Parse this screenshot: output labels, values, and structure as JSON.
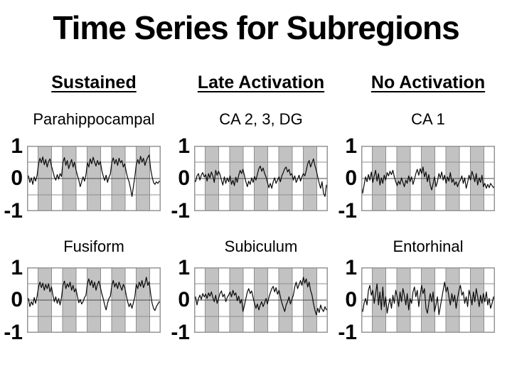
{
  "title": "Time Series for Subregions",
  "columns": [
    {
      "header": "Sustained",
      "cells": [
        {
          "label": "Parahippocampal"
        },
        {
          "label": "Fusiform"
        }
      ]
    },
    {
      "header": "Late Activation",
      "cells": [
        {
          "label": "CA 2, 3, DG"
        },
        {
          "label": "Subiculum"
        }
      ]
    },
    {
      "header": "No Activation",
      "cells": [
        {
          "label": "CA 1"
        },
        {
          "label": "Entorhinal"
        }
      ]
    }
  ],
  "axis": {
    "yticks": [
      "1",
      "0",
      "-1"
    ]
  },
  "colors": {
    "background": "#ffffff",
    "text": "#000000",
    "task_band": "#c2c2c2",
    "grid_minor": "#8f8f8f",
    "grid_zero": "#4a4a4a",
    "frame": "#969696",
    "line": "#0a0a0a"
  },
  "chart_data": {
    "type": "line",
    "ylim": [
      -1,
      1
    ],
    "yticks": [
      1,
      0,
      -1
    ],
    "grid_y": [
      0.5,
      0,
      -0.5
    ],
    "task_intervals_frac": [
      [
        0.0824,
        0.1835
      ],
      [
        0.266,
        0.367
      ],
      [
        0.4495,
        0.5505
      ],
      [
        0.633,
        0.734
      ],
      [
        0.8165,
        0.9176
      ]
    ],
    "series": [
      {
        "name": "Parahippocampal",
        "condition": "Sustained",
        "values": [
          -0.05,
          0.08,
          -0.12,
          0.02,
          -0.18,
          0.05,
          -0.08,
          0.1,
          0.45,
          0.62,
          0.48,
          0.66,
          0.42,
          0.58,
          0.35,
          0.52,
          0.6,
          0.38,
          0.22,
          0.05,
          -0.05,
          0.12,
          -0.02,
          0.15,
          0.06,
          0.5,
          0.64,
          0.4,
          0.55,
          0.3,
          0.45,
          0.58,
          0.35,
          0.5,
          0.28,
          0.1,
          -0.05,
          -0.25,
          -0.1,
          0.05,
          -0.08,
          0.12,
          0.48,
          0.35,
          0.6,
          0.45,
          0.65,
          0.5,
          0.38,
          0.55,
          0.42,
          0.52,
          0.25,
          0.08,
          -0.06,
          0.1,
          -0.12,
          0.04,
          0.14,
          0.5,
          0.63,
          0.45,
          0.58,
          0.4,
          0.62,
          0.48,
          0.55,
          0.35,
          0.45,
          0.2,
          0.02,
          -0.1,
          -0.3,
          -0.55,
          -0.25,
          0.05,
          0.42,
          0.58,
          0.45,
          0.68,
          0.5,
          0.62,
          0.4,
          0.55,
          0.65,
          0.72,
          0.3,
          0.05,
          -0.12,
          -0.18,
          -0.1,
          -0.15,
          -0.08,
          -0.12
        ]
      },
      {
        "name": "CA 2, 3, DG",
        "condition": "Late Activation",
        "values": [
          0.02,
          -0.1,
          0.08,
          0.15,
          -0.05,
          0.1,
          0.18,
          0.05,
          0.12,
          -0.08,
          0.15,
          0.02,
          0.2,
          0.08,
          -0.12,
          0.25,
          0.1,
          0.22,
          0.12,
          -0.05,
          -0.2,
          0.05,
          -0.15,
          0.02,
          -0.1,
          0.08,
          -0.18,
          -0.05,
          -0.22,
          0.04,
          -0.12,
          0.1,
          0.25,
          0.15,
          0.28,
          0.08,
          -0.1,
          -0.25,
          -0.08,
          -0.18,
          0.02,
          -0.12,
          0.06,
          -0.05,
          0.12,
          0.3,
          0.38,
          0.22,
          0.32,
          0.15,
          0.05,
          -0.12,
          -0.28,
          -0.15,
          -0.3,
          -0.1,
          0.02,
          -0.15,
          -0.05,
          0.05,
          -0.1,
          0.08,
          0.18,
          0.3,
          0.35,
          0.2,
          0.28,
          0.1,
          0.15,
          -0.05,
          0.08,
          -0.12,
          -0.02,
          0.1,
          -0.08,
          0.05,
          0.15,
          0.08,
          0.25,
          0.45,
          0.55,
          0.35,
          0.48,
          0.6,
          0.4,
          0.25,
          0.05,
          -0.15,
          -0.3,
          -0.1,
          -0.45,
          -0.55,
          -0.2,
          -0.35
        ]
      },
      {
        "name": "CA 1",
        "condition": "No Activation",
        "values": [
          -0.15,
          -0.45,
          -0.2,
          0.05,
          -0.1,
          0.12,
          -0.05,
          0.2,
          -0.12,
          0.08,
          0.25,
          -0.08,
          0.15,
          -0.2,
          0.02,
          -0.15,
          0.1,
          -0.05,
          0.18,
          0.08,
          0.22,
          0.12,
          0.25,
          0.05,
          -0.1,
          -0.22,
          -0.08,
          -0.18,
          0.02,
          -0.12,
          -0.25,
          -0.05,
          -0.15,
          0.08,
          -0.1,
          0.05,
          -0.18,
          -0.02,
          0.15,
          0.28,
          0.1,
          0.3,
          0.15,
          0.35,
          0.05,
          0.2,
          -0.1,
          0.12,
          -0.2,
          -0.35,
          -0.15,
          0.05,
          -0.25,
          -0.1,
          0.15,
          0.02,
          0.2,
          -0.05,
          0.1,
          -0.15,
          0.05,
          -0.08,
          0.18,
          -0.12,
          -0.02,
          -0.2,
          -0.1,
          -0.25,
          -0.12,
          -0.05,
          0.08,
          -0.15,
          0.02,
          -0.3,
          -0.12,
          0.1,
          -0.05,
          0.22,
          0.08,
          -0.1,
          0.15,
          -0.2,
          0.02,
          -0.12,
          0.1,
          -0.25,
          -0.15,
          -0.3,
          -0.18,
          -0.28,
          -0.15,
          -0.22,
          -0.28,
          -0.2
        ]
      },
      {
        "name": "Fusiform",
        "condition": "Sustained",
        "values": [
          -0.1,
          0.05,
          -0.2,
          -0.05,
          -0.15,
          0.08,
          -0.1,
          0.12,
          0.4,
          0.55,
          0.38,
          0.52,
          0.3,
          0.48,
          0.35,
          0.5,
          0.25,
          0.4,
          0.15,
          -0.05,
          0.1,
          -0.1,
          0.05,
          -0.15,
          0.08,
          0.45,
          0.58,
          0.35,
          0.5,
          0.4,
          0.55,
          0.3,
          0.45,
          0.25,
          0.35,
          0.12,
          -0.08,
          0.02,
          -0.12,
          -0.05,
          0.08,
          0.15,
          0.5,
          0.65,
          0.45,
          0.6,
          0.38,
          0.55,
          0.3,
          0.48,
          0.58,
          0.4,
          0.2,
          0.05,
          -0.15,
          -0.3,
          -0.1,
          0.05,
          0.12,
          0.45,
          0.6,
          0.4,
          0.52,
          0.35,
          0.55,
          0.42,
          0.3,
          0.48,
          0.38,
          0.15,
          -0.05,
          -0.2,
          -0.1,
          -0.25,
          -0.08,
          0.1,
          0.48,
          0.35,
          0.55,
          0.42,
          0.6,
          0.38,
          0.5,
          0.7,
          0.45,
          0.55,
          0.2,
          -0.1,
          -0.25,
          -0.32,
          -0.2,
          -0.12,
          -0.05,
          -0.1
        ]
      },
      {
        "name": "Subiculum",
        "condition": "Late Activation",
        "values": [
          -0.05,
          0.1,
          -0.15,
          0.05,
          0.15,
          0.02,
          0.2,
          0.1,
          0.18,
          0.05,
          0.22,
          0.12,
          0.25,
          0.08,
          -0.05,
          0.15,
          -0.1,
          0.05,
          0.2,
          0.28,
          0.1,
          0.18,
          -0.05,
          0.08,
          0.15,
          0.25,
          0.1,
          0.3,
          0.15,
          0.22,
          -0.02,
          0.12,
          -0.1,
          0.02,
          -0.35,
          -0.15,
          0.05,
          0.25,
          0.35,
          0.2,
          0.28,
          0.08,
          -0.1,
          -0.25,
          -0.12,
          -0.3,
          -0.15,
          -0.05,
          -0.2,
          -0.08,
          0.05,
          -0.12,
          0.08,
          0.22,
          0.35,
          0.42,
          0.25,
          0.38,
          0.18,
          0.3,
          0.1,
          -0.08,
          -0.22,
          -0.35,
          -0.15,
          -0.05,
          0.1,
          -0.12,
          0.02,
          0.15,
          0.4,
          0.55,
          0.35,
          0.48,
          0.6,
          0.45,
          0.7,
          0.52,
          0.65,
          0.4,
          0.55,
          0.3,
          0.15,
          -0.1,
          -0.3,
          -0.45,
          -0.25,
          -0.38,
          -0.15,
          -0.28,
          -0.35,
          -0.2,
          -0.3,
          -0.25
        ]
      },
      {
        "name": "Entorhinal",
        "condition": "No Activation",
        "values": [
          -0.2,
          -0.35,
          -0.1,
          0.05,
          -0.15,
          0.3,
          0.45,
          0.15,
          0.3,
          -0.1,
          0.2,
          0.5,
          -0.15,
          0.25,
          -0.3,
          0.4,
          -0.2,
          0.1,
          -0.4,
          -0.15,
          0.05,
          -0.25,
          0.15,
          -0.1,
          0.3,
          0.1,
          -0.2,
          0.25,
          -0.05,
          0.35,
          0.15,
          -0.15,
          0.2,
          -0.3,
          0.05,
          -0.1,
          0.25,
          0.4,
          0.1,
          0.3,
          -0.2,
          0.15,
          0.45,
          0.2,
          0.35,
          -0.25,
          -0.4,
          -0.1,
          0.2,
          -0.05,
          0.25,
          -0.35,
          -0.15,
          0.1,
          -0.45,
          -0.2,
          0.05,
          0.3,
          0.55,
          0.25,
          0.4,
          0.1,
          -0.15,
          0.2,
          -0.05,
          0.15,
          -0.25,
          0.05,
          0.3,
          0.45,
          0.15,
          0.25,
          -0.1,
          0.1,
          -0.2,
          0.3,
          0.12,
          -0.15,
          0.25,
          -0.05,
          0.35,
          0.1,
          -0.2,
          0.15,
          -0.1,
          0.2,
          -0.05,
          0.25,
          -0.15,
          0.05,
          -0.25,
          -0.1,
          0.1,
          -0.05
        ]
      }
    ]
  }
}
